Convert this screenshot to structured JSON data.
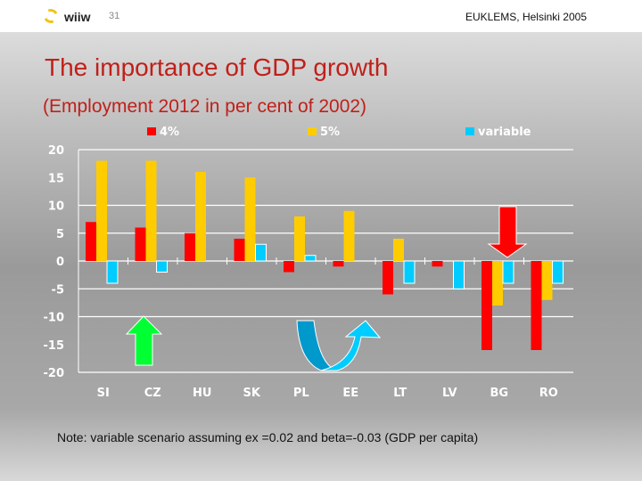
{
  "header": {
    "logo_text": "wiiw",
    "page_number": "31",
    "conference": "EUKLEMS, Helsinki 2005"
  },
  "title": "The importance of GDP growth",
  "subtitle": "(Employment 2012 in per cent of 2002)",
  "note": "Note: variable scenario assuming ex =0.02 and beta=-0.03 (GDP per capita)",
  "chart_data": {
    "type": "bar",
    "categories": [
      "SI",
      "CZ",
      "HU",
      "SK",
      "PL",
      "EE",
      "LT",
      "LV",
      "BG",
      "RO"
    ],
    "series": [
      {
        "name": "4%",
        "color": "#ff0000",
        "values": [
          7,
          6,
          5,
          4,
          -2,
          -1,
          -6,
          -1,
          -16,
          -16
        ]
      },
      {
        "name": "5%",
        "color": "#ffcc00",
        "values": [
          18,
          18,
          16,
          15,
          8,
          9,
          4,
          0,
          -8,
          -7
        ]
      },
      {
        "name": "variable",
        "color": "#00ccff",
        "values": [
          -4,
          -2,
          0,
          3,
          1,
          0,
          -4,
          -5,
          -4,
          -4
        ]
      }
    ],
    "ylim": [
      -20,
      20
    ],
    "yticks": [
      20,
      15,
      10,
      5,
      0,
      -5,
      -10,
      -15,
      -20
    ],
    "grid": true,
    "legend": "top",
    "annotations": [
      "green up arrow",
      "blue U-turn arrow",
      "red down arrow"
    ]
  }
}
